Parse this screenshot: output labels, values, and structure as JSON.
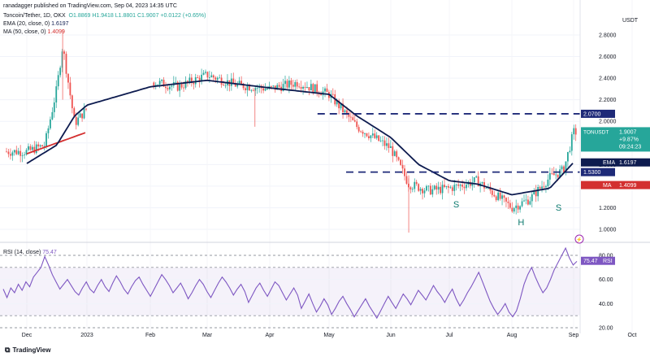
{
  "header": {
    "published": "ranadagger published on TradingView.com, Sep 04, 2023 14:35 UTC",
    "symbol_line": "Toncoin/Tether, 1D, OKX",
    "ohlc": "O1.8869  H1.9418  L1.8801  C1.9007  +0.0122 (+0.65%)",
    "ema_label": "EMA (20, close, 0)",
    "ema_value": "1.6197",
    "ma_label": "MA (50, close, 0)",
    "ma_value": "1.4099",
    "rsi_label": "RSI (14, close)",
    "rsi_value": "75.47"
  },
  "footer": {
    "brand": "TradingView"
  },
  "colors": {
    "up": "#26a69a",
    "down": "#ef5350",
    "ema": "#0d1b4f",
    "ma": "#d32f2f",
    "rsi": "#7e57c2",
    "level": "#1e2a78"
  },
  "chart_data": [
    {
      "type": "candlestick",
      "currency": "USDT",
      "y_ticks": [
        1.0,
        1.2,
        1.4,
        1.6,
        1.8,
        2.0,
        2.2,
        2.4,
        2.6,
        2.8
      ],
      "x_ticks": [
        "Dec",
        "2023",
        "Feb",
        "Mar",
        "Apr",
        "May",
        "Jun",
        "Jul",
        "Aug",
        "Sep",
        "Oct"
      ],
      "ylim": [
        0.92,
        2.95
      ],
      "horizontal_levels": [
        {
          "label": "2.0700",
          "value": 2.07
        },
        {
          "label": "1.5300",
          "value": 1.53
        }
      ],
      "price_labels": [
        {
          "name": "TONUSDT",
          "lines": [
            "1.9007",
            "+9.87%",
            "09:24:23"
          ]
        },
        {
          "name": "EMA",
          "value": "1.6197"
        },
        {
          "name": "MA",
          "value": "1.4099"
        }
      ],
      "annotations": [
        "S",
        "H",
        "S"
      ],
      "close_path": [
        [
          "Dec",
          1.72
        ],
        [
          "Dec 10",
          1.78
        ],
        [
          "Dec 16",
          2.3
        ],
        [
          "Dec 19",
          2.7
        ],
        [
          "Dec 25",
          1.98
        ],
        [
          "2023",
          2.12
        ],
        [
          "Jan 15",
          2.3
        ],
        [
          "Feb",
          2.37
        ],
        [
          "Feb 15",
          2.32
        ],
        [
          "Mar",
          2.43
        ],
        [
          "Mar 15",
          2.34
        ],
        [
          "Apr",
          2.3
        ],
        [
          "Apr 15",
          2.36
        ],
        [
          "May",
          2.25
        ],
        [
          "May 15",
          1.95
        ],
        [
          "Jun",
          1.75
        ],
        [
          "Jun 10",
          1.42
        ],
        [
          "Jun 20",
          1.36
        ],
        [
          "Jul",
          1.38
        ],
        [
          "Jul 15",
          1.45
        ],
        [
          "Aug",
          1.2
        ],
        [
          "Aug 10",
          1.28
        ],
        [
          "Aug 20",
          1.48
        ],
        [
          "Aug 27",
          1.55
        ],
        [
          "Sep",
          1.9
        ]
      ],
      "ema20_path": [
        [
          "Dec",
          1.61
        ],
        [
          "Dec 16",
          1.78
        ],
        [
          "Dec 25",
          2.05
        ],
        [
          "2023",
          2.15
        ],
        [
          "Feb",
          2.32
        ],
        [
          "Mar",
          2.38
        ],
        [
          "Apr",
          2.31
        ],
        [
          "May",
          2.25
        ],
        [
          "May 15",
          2.05
        ],
        [
          "Jun",
          1.85
        ],
        [
          "Jun 15",
          1.6
        ],
        [
          "Jul",
          1.45
        ],
        [
          "Jul 15",
          1.42
        ],
        [
          "Aug",
          1.32
        ],
        [
          "Aug 20",
          1.38
        ],
        [
          "Sep",
          1.6197
        ]
      ],
      "ma50_path": [
        [
          "Dec",
          1.7
        ],
        [
          "2023",
          1.9
        ],
        [
          "Jan 15",
          2.08
        ],
        [
          "Feb",
          2.22
        ],
        [
          "Mar",
          2.33
        ],
        [
          "Apr",
          2.33
        ],
        [
          "May",
          2.28
        ],
        [
          "May 15",
          2.18
        ],
        [
          "Jun",
          2.0
        ],
        [
          "Jun 15",
          1.8
        ],
        [
          "Jul",
          1.6
        ],
        [
          "Jul 15",
          1.46
        ],
        [
          "Aug",
          1.37
        ],
        [
          "Aug 20",
          1.36
        ],
        [
          "Sep",
          1.4099
        ]
      ]
    },
    {
      "type": "line",
      "name": "RSI (14, close)",
      "y_ticks": [
        20.0,
        40.0,
        60.0,
        80.0
      ],
      "band": [
        30,
        70
      ],
      "ylim": [
        18,
        90
      ],
      "last_value": "75.47",
      "values": [
        52,
        45,
        53,
        49,
        56,
        51,
        58,
        54,
        62,
        66,
        70,
        79,
        72,
        64,
        58,
        52,
        56,
        60,
        55,
        50,
        47,
        53,
        58,
        52,
        49,
        55,
        60,
        54,
        50,
        57,
        63,
        58,
        52,
        48,
        54,
        59,
        62,
        56,
        51,
        46,
        52,
        58,
        64,
        60,
        55,
        49,
        53,
        57,
        51,
        44,
        49,
        55,
        60,
        56,
        50,
        45,
        51,
        57,
        62,
        58,
        53,
        47,
        52,
        56,
        50,
        41,
        47,
        53,
        57,
        51,
        46,
        52,
        58,
        55,
        49,
        43,
        48,
        53,
        47,
        36,
        42,
        48,
        40,
        33,
        38,
        44,
        39,
        31,
        36,
        42,
        46,
        40,
        35,
        29,
        34,
        39,
        44,
        38,
        33,
        28,
        34,
        40,
        46,
        41,
        36,
        42,
        48,
        44,
        39,
        45,
        51,
        47,
        43,
        49,
        55,
        50,
        46,
        41,
        47,
        52,
        44,
        38,
        43,
        49,
        54,
        60,
        66,
        58,
        50,
        42,
        36,
        31,
        35,
        40,
        33,
        29,
        34,
        44,
        56,
        64,
        70,
        62,
        55,
        49,
        53,
        60,
        68,
        74,
        80,
        86,
        78,
        72,
        75
      ]
    }
  ]
}
